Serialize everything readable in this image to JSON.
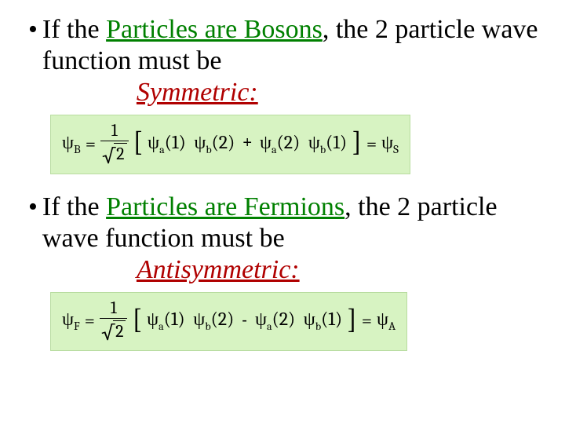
{
  "colors": {
    "emphasis_green": "#008000",
    "emphasis_red": "#b00000",
    "equation_bg": "#d7f3c2",
    "equation_border": "#b8dca0",
    "text": "#000000",
    "background": "#ffffff"
  },
  "typography": {
    "body_family": "Times New Roman",
    "body_size_pt": 26,
    "equation_family": "Cambria",
    "equation_size_pt": 18
  },
  "bullet1": {
    "pre": "If the ",
    "emph": "Particles are Bosons",
    "post": ", the 2 particle wave function must be",
    "label_ital": "Symmetric:"
  },
  "eq1": {
    "lhs_psi": "ψ",
    "lhs_sub": "B",
    "frac_num": "1",
    "sqrt_arg": "2",
    "t1_psi_a": "ψ",
    "t1_sub_a": "a",
    "t1_arg_a": "(1)",
    "t1_psi_b": "ψ",
    "t1_sub_b": "b",
    "t1_arg_b": "(2)",
    "op": "+",
    "t2_psi_a": "ψ",
    "t2_sub_a": "a",
    "t2_arg_a": "(2)",
    "t2_psi_b": "ψ",
    "t2_sub_b": "b",
    "t2_arg_b": "(1)",
    "rhs_psi": "ψ",
    "rhs_sub": "S"
  },
  "bullet2": {
    "pre": "If the ",
    "emph": "Particles are Fermions",
    "post": ", the 2 particle wave function must be",
    "label_ital": "Antisymmetric:"
  },
  "eq2": {
    "lhs_psi": "ψ",
    "lhs_sub": "F",
    "frac_num": "1",
    "sqrt_arg": "2",
    "t1_psi_a": "ψ",
    "t1_sub_a": "a",
    "t1_arg_a": "(1)",
    "t1_psi_b": "ψ",
    "t1_sub_b": "b",
    "t1_arg_b": "(2)",
    "op": "-",
    "t2_psi_a": "ψ",
    "t2_sub_a": "a",
    "t2_arg_a": "(2)",
    "t2_psi_b": "ψ",
    "t2_sub_b": "b",
    "t2_arg_b": "(1)",
    "rhs_psi": "ψ",
    "rhs_sub": "A"
  }
}
